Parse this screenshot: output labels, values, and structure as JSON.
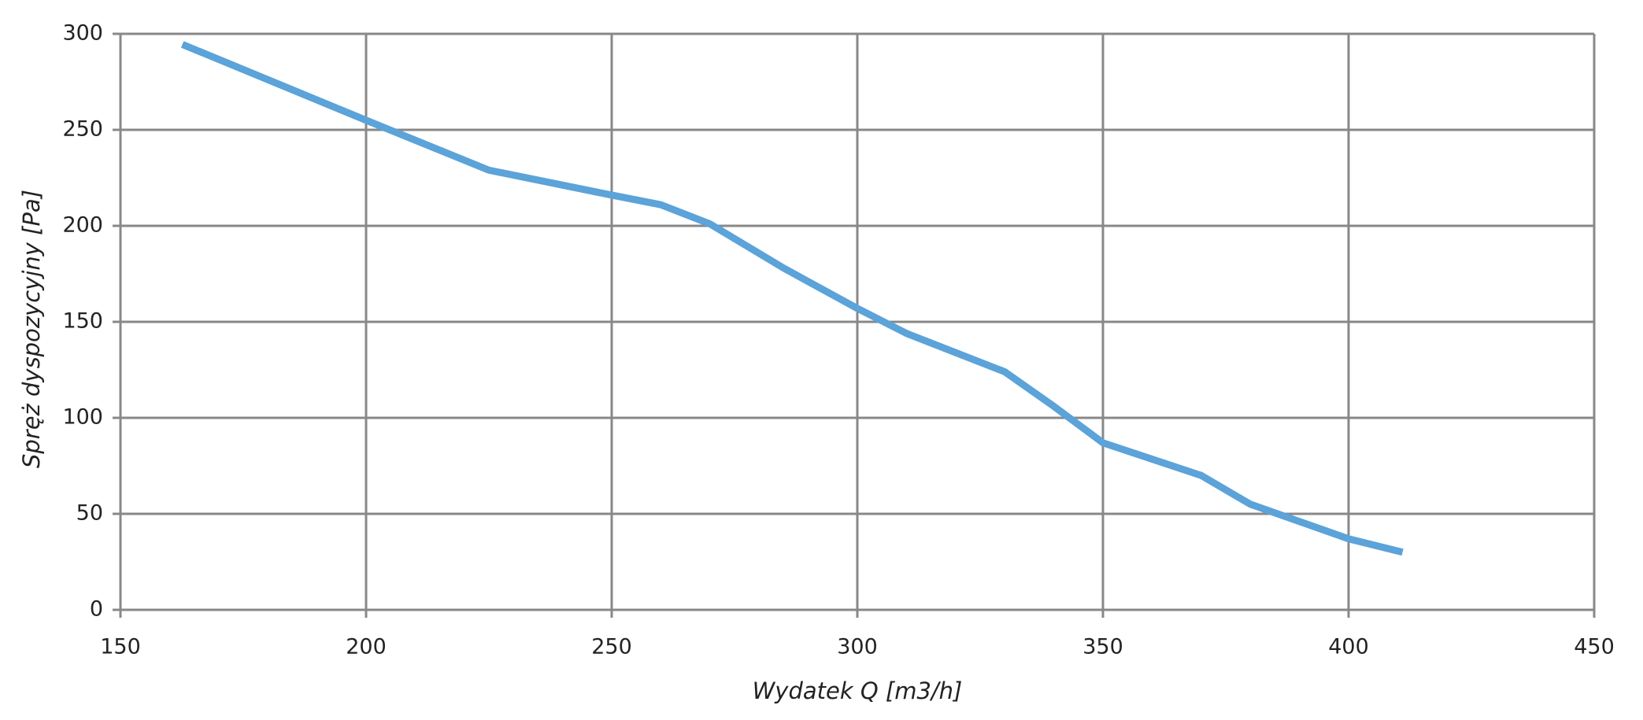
{
  "chart_data": {
    "type": "line",
    "x_label": "Wydatek Q [m3/h]",
    "y_label": "Spręż dyspozycyjny [Pa]",
    "x": [
      162.6,
      200,
      225,
      250,
      260,
      270,
      285,
      300,
      310,
      330,
      340,
      350,
      370,
      380,
      400,
      411
    ],
    "series": [
      {
        "color": "#5ba3d9",
        "values": [
          294.5,
          255,
          229,
          216,
          211,
          201,
          178,
          157,
          144,
          124,
          106,
          87,
          70,
          55,
          37,
          30
        ]
      }
    ],
    "xlim": [
      150,
      450
    ],
    "xticks": [
      150,
      200,
      250,
      300,
      350,
      400,
      450
    ],
    "ylim": [
      0,
      300
    ],
    "yticks": [
      0,
      50,
      100,
      150,
      200,
      250,
      300
    ],
    "grid": true
  }
}
